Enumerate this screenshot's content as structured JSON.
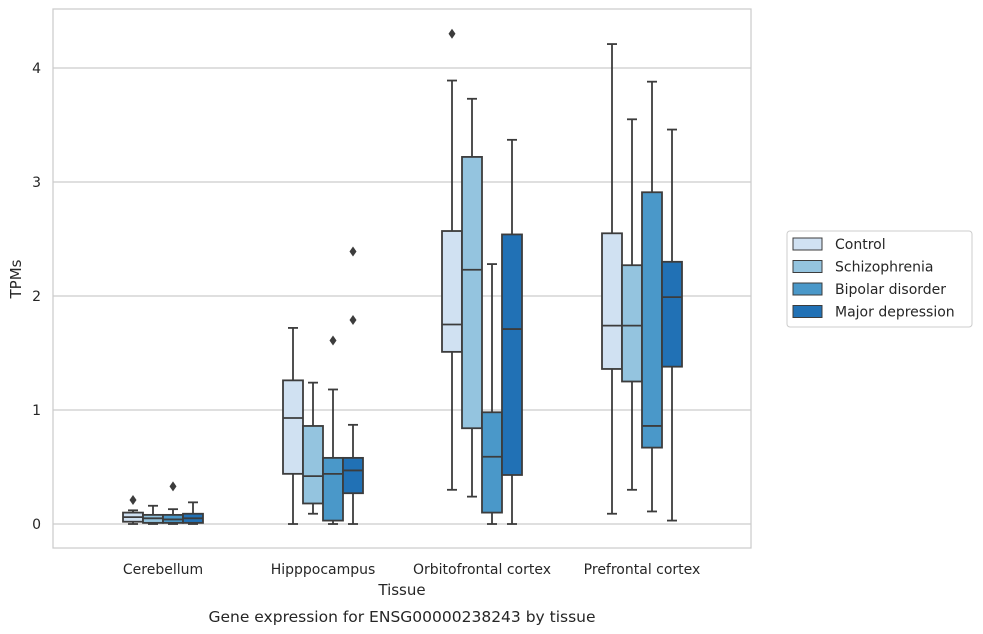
{
  "chart_data": {
    "type": "boxplot",
    "caption": "Gene expression for ENSG00000238243 by tissue",
    "xlabel": "Tissue",
    "ylabel": "TPMs",
    "ylim": [
      -0.2,
      4.5
    ],
    "yticks": [
      0,
      1,
      2,
      3,
      4
    ],
    "grid": "horizontal",
    "legend_position": "right",
    "categories": [
      "Cerebellum",
      "Hipppocampus",
      "Orbitofrontal cortex",
      "Prefrontal cortex"
    ],
    "series": [
      {
        "name": "Control",
        "color": "#d0e1f2",
        "boxes": [
          {
            "whisker_low": 0.0,
            "q1": 0.02,
            "median": 0.06,
            "q3": 0.1,
            "whisker_high": 0.12,
            "outliers": [
              0.21
            ]
          },
          {
            "whisker_low": 0.0,
            "q1": 0.44,
            "median": 0.93,
            "q3": 1.26,
            "whisker_high": 1.72,
            "outliers": []
          },
          {
            "whisker_low": 0.3,
            "q1": 1.51,
            "median": 1.75,
            "q3": 2.57,
            "whisker_high": 3.89,
            "outliers": [
              4.3
            ]
          },
          {
            "whisker_low": 0.09,
            "q1": 1.36,
            "median": 1.74,
            "q3": 2.55,
            "whisker_high": 4.21,
            "outliers": []
          }
        ]
      },
      {
        "name": "Schizophrenia",
        "color": "#94c4df",
        "boxes": [
          {
            "whisker_low": 0.0,
            "q1": 0.01,
            "median": 0.05,
            "q3": 0.08,
            "whisker_high": 0.16,
            "outliers": []
          },
          {
            "whisker_low": 0.09,
            "q1": 0.18,
            "median": 0.42,
            "q3": 0.86,
            "whisker_high": 1.24,
            "outliers": []
          },
          {
            "whisker_low": 0.24,
            "q1": 0.84,
            "median": 2.23,
            "q3": 3.22,
            "whisker_high": 3.73,
            "outliers": []
          },
          {
            "whisker_low": 0.3,
            "q1": 1.25,
            "median": 1.74,
            "q3": 2.27,
            "whisker_high": 3.55,
            "outliers": []
          }
        ]
      },
      {
        "name": "Bipolar disorder",
        "color": "#4a98c9",
        "boxes": [
          {
            "whisker_low": 0.0,
            "q1": 0.01,
            "median": 0.04,
            "q3": 0.08,
            "whisker_high": 0.13,
            "outliers": [
              0.33
            ]
          },
          {
            "whisker_low": 0.0,
            "q1": 0.03,
            "median": 0.44,
            "q3": 0.58,
            "whisker_high": 1.18,
            "outliers": [
              1.61
            ]
          },
          {
            "whisker_low": 0.0,
            "q1": 0.1,
            "median": 0.59,
            "q3": 0.98,
            "whisker_high": 2.28,
            "outliers": []
          },
          {
            "whisker_low": 0.11,
            "q1": 0.67,
            "median": 0.86,
            "q3": 2.91,
            "whisker_high": 3.88,
            "outliers": []
          }
        ]
      },
      {
        "name": "Major depression",
        "color": "#2171b5",
        "boxes": [
          {
            "whisker_low": 0.0,
            "q1": 0.01,
            "median": 0.05,
            "q3": 0.09,
            "whisker_high": 0.19,
            "outliers": []
          },
          {
            "whisker_low": 0.0,
            "q1": 0.27,
            "median": 0.47,
            "q3": 0.58,
            "whisker_high": 0.87,
            "outliers": [
              1.79,
              2.39
            ]
          },
          {
            "whisker_low": 0.0,
            "q1": 0.43,
            "median": 1.71,
            "q3": 2.54,
            "whisker_high": 3.37,
            "outliers": []
          },
          {
            "whisker_low": 0.03,
            "q1": 1.38,
            "median": 1.99,
            "q3": 2.3,
            "whisker_high": 3.46,
            "outliers": []
          }
        ]
      }
    ]
  }
}
